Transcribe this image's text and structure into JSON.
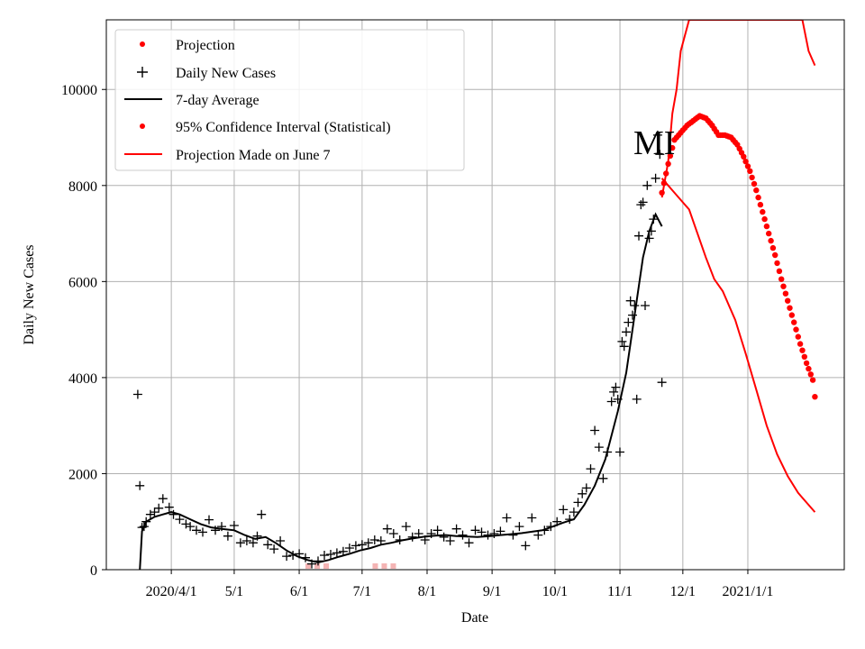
{
  "chart_data": {
    "type": "line",
    "xlabel": "Date",
    "ylabel": "Daily New Cases",
    "annotation": "MI",
    "x_ticks": [
      "2020/4/1",
      "5/1",
      "6/1",
      "7/1",
      "8/1",
      "9/1",
      "10/1",
      "11/1",
      "12/1",
      "2021/1/1"
    ],
    "x_tick_dates": [
      "2020-04-01",
      "2020-05-01",
      "2020-06-01",
      "2020-07-01",
      "2020-08-01",
      "2020-09-01",
      "2020-10-01",
      "2020-11-01",
      "2020-12-01",
      "2021-01-01"
    ],
    "xlim": [
      "2020-03-01",
      "2021-02-16"
    ],
    "y_ticks": [
      0,
      2000,
      4000,
      6000,
      8000,
      10000
    ],
    "ylim": [
      0,
      11450
    ],
    "grid": true,
    "legend_position": "upper-left",
    "legend": [
      "Projection",
      "Daily New Cases",
      "7-day Average",
      "95% Confidence Interval (Statistical)",
      "Projection Made on June 7"
    ],
    "colors": {
      "observed": "#000000",
      "projection": "#ff0000",
      "ci_faint": "#f4b4b4",
      "grid": "#b0b0b0"
    },
    "series": [
      {
        "name": "Daily New Cases",
        "marker": "+",
        "x": [
          "2020-03-16",
          "2020-03-17",
          "2020-03-18",
          "2020-03-19",
          "2020-03-20",
          "2020-03-22",
          "2020-03-24",
          "2020-03-26",
          "2020-03-28",
          "2020-03-31",
          "2020-04-02",
          "2020-04-05",
          "2020-04-08",
          "2020-04-10",
          "2020-04-13",
          "2020-04-16",
          "2020-04-19",
          "2020-04-22",
          "2020-04-25",
          "2020-04-28",
          "2020-05-01",
          "2020-05-04",
          "2020-05-07",
          "2020-05-10",
          "2020-05-12",
          "2020-05-14",
          "2020-05-17",
          "2020-05-20",
          "2020-05-23",
          "2020-05-26",
          "2020-05-29",
          "2020-06-01",
          "2020-06-04",
          "2020-06-07",
          "2020-06-10",
          "2020-06-13",
          "2020-06-16",
          "2020-06-19",
          "2020-06-22",
          "2020-06-25",
          "2020-06-28",
          "2020-07-01",
          "2020-07-04",
          "2020-07-07",
          "2020-07-10",
          "2020-07-13",
          "2020-07-16",
          "2020-07-19",
          "2020-07-22",
          "2020-07-25",
          "2020-07-28",
          "2020-07-31",
          "2020-08-03",
          "2020-08-06",
          "2020-08-09",
          "2020-08-12",
          "2020-08-15",
          "2020-08-18",
          "2020-08-21",
          "2020-08-24",
          "2020-08-27",
          "2020-08-30",
          "2020-09-02",
          "2020-09-05",
          "2020-09-08",
          "2020-09-11",
          "2020-09-14",
          "2020-09-17",
          "2020-09-20",
          "2020-09-23",
          "2020-09-26",
          "2020-09-29",
          "2020-10-02",
          "2020-10-05",
          "2020-10-08",
          "2020-10-10",
          "2020-10-12",
          "2020-10-14",
          "2020-10-16",
          "2020-10-18",
          "2020-10-20",
          "2020-10-22",
          "2020-10-24",
          "2020-10-26",
          "2020-10-28",
          "2020-10-29",
          "2020-10-30",
          "2020-10-31",
          "2020-11-01",
          "2020-11-02",
          "2020-11-03",
          "2020-11-04",
          "2020-11-05",
          "2020-11-06",
          "2020-11-07",
          "2020-11-08",
          "2020-11-09",
          "2020-11-10",
          "2020-11-11",
          "2020-11-12",
          "2020-11-13",
          "2020-11-14",
          "2020-11-15",
          "2020-11-16",
          "2020-11-17",
          "2020-11-18",
          "2020-11-19",
          "2020-11-20",
          "2020-11-21"
        ],
        "y": [
          3650,
          1750,
          880,
          900,
          1000,
          1150,
          1200,
          1280,
          1480,
          1300,
          1150,
          1050,
          950,
          900,
          820,
          780,
          1040,
          820,
          900,
          700,
          920,
          560,
          600,
          560,
          700,
          1150,
          520,
          430,
          600,
          280,
          300,
          330,
          250,
          120,
          180,
          300,
          320,
          350,
          380,
          450,
          500,
          520,
          560,
          620,
          600,
          850,
          750,
          620,
          900,
          680,
          750,
          620,
          750,
          820,
          680,
          600,
          850,
          720,
          560,
          820,
          780,
          720,
          750,
          800,
          1080,
          720,
          900,
          500,
          1080,
          720,
          820,
          900,
          1000,
          1250,
          1050,
          1200,
          1400,
          1580,
          1700,
          2100,
          2900,
          2550,
          1900,
          2450,
          3500,
          3700,
          3800,
          3550,
          2450,
          4750,
          4650,
          4950,
          5150,
          5600,
          5300,
          5500,
          3550,
          6950,
          7600,
          7650,
          5500,
          8000,
          6900,
          7050,
          7300,
          8150,
          9050,
          8650,
          3900
        ]
      },
      {
        "name": "7-day Average",
        "x": [
          "2020-03-17",
          "2020-03-18",
          "2020-03-20",
          "2020-03-24",
          "2020-03-28",
          "2020-04-01",
          "2020-04-05",
          "2020-04-10",
          "2020-04-15",
          "2020-04-20",
          "2020-04-25",
          "2020-05-01",
          "2020-05-06",
          "2020-05-11",
          "2020-05-16",
          "2020-05-21",
          "2020-05-26",
          "2020-05-31",
          "2020-06-05",
          "2020-06-10",
          "2020-06-15",
          "2020-06-20",
          "2020-06-25",
          "2020-06-30",
          "2020-07-05",
          "2020-07-10",
          "2020-07-15",
          "2020-07-20",
          "2020-07-25",
          "2020-07-31",
          "2020-08-05",
          "2020-08-10",
          "2020-08-15",
          "2020-08-20",
          "2020-08-25",
          "2020-08-31",
          "2020-09-05",
          "2020-09-10",
          "2020-09-15",
          "2020-09-20",
          "2020-09-25",
          "2020-09-30",
          "2020-10-05",
          "2020-10-10",
          "2020-10-15",
          "2020-10-20",
          "2020-10-25",
          "2020-10-31",
          "2020-11-04",
          "2020-11-08",
          "2020-11-12",
          "2020-11-15",
          "2020-11-18",
          "2020-11-21"
        ],
        "y": [
          0,
          800,
          1000,
          1100,
          1150,
          1200,
          1150,
          1050,
          950,
          880,
          850,
          820,
          720,
          640,
          680,
          550,
          400,
          280,
          200,
          150,
          200,
          270,
          330,
          400,
          450,
          520,
          560,
          610,
          650,
          690,
          710,
          720,
          700,
          690,
          680,
          700,
          720,
          740,
          760,
          790,
          820,
          900,
          980,
          1050,
          1350,
          1750,
          2300,
          3300,
          4100,
          5300,
          6500,
          7050,
          7400,
          7150
        ]
      },
      {
        "name": "Projection",
        "marker": ".",
        "x": [
          "2020-11-21",
          "2020-11-24",
          "2020-11-27",
          "2020-11-30",
          "2020-12-03",
          "2020-12-06",
          "2020-12-09",
          "2020-12-12",
          "2020-12-15",
          "2020-12-18",
          "2020-12-21",
          "2020-12-24",
          "2020-12-27",
          "2020-12-30",
          "2021-01-02",
          "2021-01-05",
          "2021-01-08",
          "2021-01-11",
          "2021-01-14",
          "2021-01-17",
          "2021-01-20",
          "2021-01-23",
          "2021-01-26",
          "2021-01-29",
          "2021-02-01",
          "2021-02-02"
        ],
        "y": [
          7850,
          8450,
          8950,
          9100,
          9250,
          9350,
          9450,
          9400,
          9250,
          9050,
          9050,
          9000,
          8850,
          8600,
          8300,
          7900,
          7450,
          7000,
          6550,
          6050,
          5600,
          5150,
          4700,
          4300,
          3950,
          3600
        ]
      },
      {
        "name": "95% Confidence Interval (Statistical)",
        "line": "red",
        "upper": {
          "x": [
            "2020-11-21",
            "2020-11-24",
            "2020-11-26",
            "2020-11-28",
            "2020-11-30",
            "2020-12-04",
            "2021-01-27",
            "2021-01-30",
            "2021-02-02"
          ],
          "y": [
            7750,
            8500,
            9500,
            10000,
            10800,
            11450,
            11450,
            10800,
            10500
          ]
        },
        "lower": {
          "x": [
            "2020-11-21",
            "2020-11-24",
            "2020-11-26",
            "2020-11-28",
            "2020-12-04",
            "2020-12-08",
            "2020-12-12",
            "2020-12-16",
            "2020-12-20",
            "2020-12-26",
            "2020-12-31",
            "2021-01-05",
            "2021-01-10",
            "2021-01-15",
            "2021-01-20",
            "2021-01-25",
            "2021-01-30",
            "2021-02-02"
          ],
          "y": [
            8150,
            8000,
            7900,
            7800,
            7500,
            7000,
            6500,
            6050,
            5800,
            5200,
            4500,
            3750,
            3000,
            2400,
            1950,
            1600,
            1350,
            1200
          ]
        }
      }
    ],
    "faint_red_marks_x": [
      "2020-06-10",
      "2020-07-12"
    ]
  }
}
